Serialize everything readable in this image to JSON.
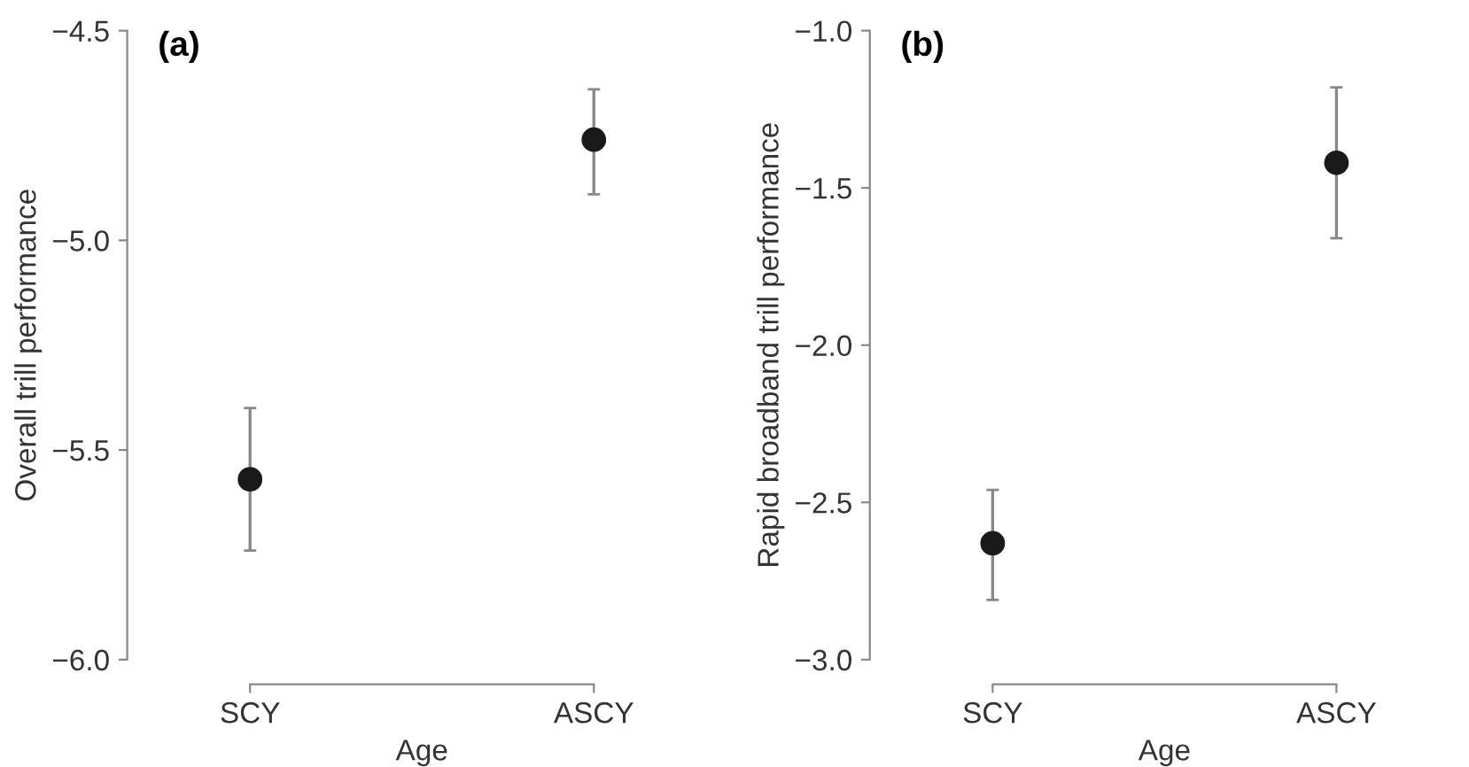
{
  "chart_data": [
    {
      "type": "scatter",
      "title": "(a)",
      "xlabel": "Age",
      "ylabel": "Overall trill performance",
      "categories": [
        "SCY",
        "ASCY"
      ],
      "series": [
        {
          "color": "#1a1a1a",
          "values": [
            -5.57,
            -4.76
          ],
          "errors": [
            [
              -5.74,
              -5.4
            ],
            [
              -4.89,
              -4.64
            ]
          ]
        }
      ],
      "ylim": [
        -6.0,
        -4.5
      ],
      "yticks": [
        {
          "value": -6.0,
          "label": "−6.0"
        },
        {
          "value": -5.5,
          "label": "−5.5"
        },
        {
          "value": -5.0,
          "label": "−5.0"
        },
        {
          "value": -4.5,
          "label": "−4.5"
        }
      ],
      "marker": "circle",
      "grid": false,
      "legend": false
    },
    {
      "type": "scatter",
      "title": "(b)",
      "xlabel": "Age",
      "ylabel": "Rapid broadband trill performance",
      "categories": [
        "SCY",
        "ASCY"
      ],
      "series": [
        {
          "color": "#1a1a1a",
          "values": [
            -2.63,
            -1.42
          ],
          "errors": [
            [
              -2.81,
              -2.46
            ],
            [
              -1.66,
              -1.18
            ]
          ]
        }
      ],
      "ylim": [
        -3.0,
        -1.0
      ],
      "yticks": [
        {
          "value": -3.0,
          "label": "−3.0"
        },
        {
          "value": -2.5,
          "label": "−2.5"
        },
        {
          "value": -2.0,
          "label": "−2.0"
        },
        {
          "value": -1.5,
          "label": "−1.5"
        },
        {
          "value": -1.0,
          "label": "−1.0"
        }
      ],
      "marker": "circle",
      "grid": false,
      "legend": false
    }
  ]
}
